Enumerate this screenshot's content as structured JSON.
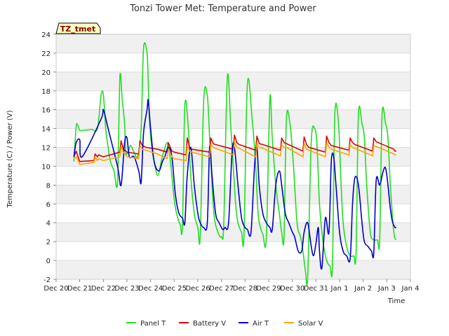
{
  "chart_data": {
    "type": "line",
    "title": "Tonzi Tower Met: Temperature and Power",
    "badge": "TZ_tmet",
    "xlabel": "Time",
    "ylabel": "Temperature (C) / Power (V)",
    "xlim": [
      0,
      15
    ],
    "ylim": [
      -2,
      24
    ],
    "x_ticks": [
      {
        "x": 0,
        "label": "Dec 20"
      },
      {
        "x": 1,
        "label": "Dec 21"
      },
      {
        "x": 2,
        "label": "Dec 22"
      },
      {
        "x": 3,
        "label": "Dec 23"
      },
      {
        "x": 4,
        "label": "Dec 24"
      },
      {
        "x": 5,
        "label": "Dec 25"
      },
      {
        "x": 6,
        "label": "Dec 26"
      },
      {
        "x": 7,
        "label": "Dec 27"
      },
      {
        "x": 8,
        "label": "Dec 28"
      },
      {
        "x": 9,
        "label": "Dec 29"
      },
      {
        "x": 10,
        "label": "Dec 30"
      },
      {
        "x": 11,
        "label": "Dec 31"
      },
      {
        "x": 12,
        "label": "Jan 1"
      },
      {
        "x": 13,
        "label": "Jan 2"
      },
      {
        "x": 14,
        "label": "Jan 3"
      },
      {
        "x": 15,
        "label": "Jan 4"
      }
    ],
    "y_ticks": [
      {
        "y": -2,
        "label": "-2"
      },
      {
        "y": 0,
        "label": "0"
      },
      {
        "y": 2,
        "label": "2"
      },
      {
        "y": 4,
        "label": "4"
      },
      {
        "y": 6,
        "label": "6"
      },
      {
        "y": 8,
        "label": "8"
      },
      {
        "y": 10,
        "label": "10"
      },
      {
        "y": 12,
        "label": "12"
      },
      {
        "y": 14,
        "label": "14"
      },
      {
        "y": 16,
        "label": "16"
      },
      {
        "y": 18,
        "label": "18"
      },
      {
        "y": 20,
        "label": "20"
      },
      {
        "y": 22,
        "label": "22"
      },
      {
        "y": 24,
        "label": "24"
      }
    ],
    "series": [
      {
        "name": "Panel T",
        "color": "#22dd22",
        "x": [
          0.75,
          0.85,
          0.92,
          1.0,
          1.1,
          1.5,
          1.75,
          1.9,
          2.0,
          2.1,
          2.2,
          2.3,
          2.45,
          2.6,
          2.7,
          2.8,
          2.9,
          2.95,
          3.05,
          3.15,
          3.3,
          3.45,
          3.6,
          3.7,
          3.85,
          3.9,
          3.95,
          4.05,
          4.15,
          4.3,
          4.45,
          4.55,
          4.7,
          4.8,
          4.9,
          5.0,
          5.1,
          5.25,
          5.35,
          5.45,
          5.6,
          5.7,
          5.85,
          6.0,
          6.1,
          6.25,
          6.4,
          6.5,
          6.6,
          6.7,
          6.85,
          7.0,
          7.1,
          7.25,
          7.4,
          7.5,
          7.6,
          7.7,
          7.85,
          7.95,
          8.1,
          8.3,
          8.45,
          8.55,
          8.65,
          8.75,
          8.9,
          9.05,
          9.15,
          9.3,
          9.45,
          9.55,
          9.65,
          9.75,
          9.9,
          10.05,
          10.2,
          10.35,
          10.45,
          10.55,
          10.65,
          10.8,
          10.95,
          11.05,
          11.15,
          11.3,
          11.45,
          11.6,
          11.7,
          11.8,
          11.95,
          12.05,
          12.15,
          12.3,
          12.45,
          12.6,
          12.7,
          12.8,
          12.95,
          13.05,
          13.15,
          13.3,
          13.45,
          13.6,
          13.7,
          13.8,
          13.95,
          14.05,
          14.15,
          14.3,
          14.4
        ],
        "values": [
          10.5,
          14.2,
          14.3,
          13.8,
          13.8,
          13.9,
          14.0,
          17.5,
          17.6,
          14.0,
          12.0,
          10.5,
          9.5,
          8.3,
          19.5,
          17.0,
          14.5,
          11.5,
          11.5,
          12.2,
          11.5,
          11.0,
          14.0,
          22.5,
          22.0,
          19.0,
          15.0,
          12.0,
          10.5,
          9.0,
          10.5,
          11.5,
          12.5,
          11.5,
          9.0,
          6.5,
          5.0,
          3.8,
          3.7,
          16.5,
          14.0,
          9.0,
          5.0,
          3.5,
          2.6,
          17.0,
          17.5,
          13.0,
          8.0,
          4.5,
          3.0,
          2.5,
          4.0,
          19.5,
          14.0,
          10.0,
          6.0,
          4.0,
          3.0,
          2.6,
          18.8,
          15.0,
          10.0,
          5.0,
          3.5,
          2.8,
          2.4,
          17.2,
          13.0,
          8.0,
          5.0,
          3.0,
          2.5,
          15.0,
          14.5,
          10.0,
          4.0,
          2.5,
          1.0,
          -1.0,
          -1.7,
          12.5,
          14.0,
          12.0,
          6.0,
          2.0,
          0.0,
          -0.6,
          -0.5,
          15.5,
          14.8,
          9.0,
          4.0,
          1.5,
          0.5,
          0.5,
          0.8,
          15.5,
          14.5,
          13.0,
          8.0,
          3.0,
          2.2,
          2.2,
          2.2,
          15.5,
          14.5,
          13.0,
          8.0,
          3.0,
          2.2
        ],
        "smooth": true
      },
      {
        "name": "Battery V",
        "color": "#dd0000",
        "x": [
          0.75,
          0.85,
          0.9,
          1.0,
          1.6,
          1.65,
          1.75,
          1.8,
          2.0,
          2.7,
          2.75,
          2.85,
          3.0,
          3.5,
          3.55,
          3.65,
          3.8,
          4.3,
          4.7,
          4.75,
          4.9,
          5.0,
          5.5,
          5.55,
          5.65,
          5.75,
          6.5,
          6.55,
          6.65,
          6.75,
          7.5,
          7.55,
          7.65,
          7.75,
          8.45,
          8.5,
          8.6,
          8.75,
          9.5,
          9.55,
          9.65,
          9.75,
          10.45,
          10.5,
          10.6,
          10.7,
          11.4,
          11.45,
          11.55,
          11.65,
          12.4,
          12.45,
          12.55,
          12.65,
          13.4,
          13.45,
          13.55,
          13.65,
          14.3,
          14.35,
          14.4
        ],
        "values": [
          11.0,
          11.6,
          11.2,
          10.5,
          10.6,
          11.3,
          11.0,
          11.2,
          11.0,
          11.5,
          12.7,
          11.8,
          11.5,
          11.3,
          12.7,
          12.2,
          12.0,
          11.8,
          11.5,
          12.5,
          11.6,
          11.5,
          11.2,
          13.0,
          12.0,
          11.8,
          11.5,
          13.0,
          12.4,
          12.3,
          11.8,
          13.3,
          12.5,
          12.3,
          11.7,
          13.2,
          12.4,
          12.3,
          11.7,
          13.0,
          12.5,
          12.4,
          11.6,
          13.1,
          12.3,
          12.0,
          11.5,
          13.2,
          12.5,
          12.2,
          11.7,
          13.0,
          12.5,
          12.3,
          11.6,
          13.0,
          12.6,
          12.5,
          11.8,
          11.6,
          11.6
        ],
        "smooth": false
      },
      {
        "name": "Air T",
        "color": "#0000cc",
        "x": [
          0.75,
          0.85,
          1.0,
          1.1,
          1.9,
          2.0,
          2.2,
          2.6,
          2.75,
          2.9,
          3.0,
          3.1,
          3.3,
          3.5,
          3.6,
          3.7,
          3.85,
          3.9,
          4.0,
          4.15,
          4.35,
          4.5,
          4.6,
          4.75,
          4.9,
          5.05,
          5.2,
          5.35,
          5.45,
          5.55,
          5.7,
          5.85,
          6.0,
          6.1,
          6.25,
          6.4,
          6.5,
          6.6,
          6.75,
          6.9,
          7.05,
          7.15,
          7.3,
          7.45,
          7.55,
          7.7,
          7.85,
          8.0,
          8.1,
          8.25,
          8.4,
          8.5,
          8.6,
          8.75,
          8.9,
          9.05,
          9.15,
          9.3,
          9.45,
          9.55,
          9.7,
          9.85,
          10.0,
          10.1,
          10.25,
          10.4,
          10.5,
          10.65,
          10.8,
          10.9,
          11.0,
          11.1,
          11.15,
          11.25,
          11.4,
          11.55,
          11.65,
          11.75,
          11.85,
          12.0,
          12.15,
          12.3,
          12.45,
          12.55,
          12.65,
          12.8,
          12.95,
          13.05,
          13.2,
          13.35,
          13.45,
          13.55,
          13.7,
          13.85,
          13.95,
          14.05,
          14.15,
          14.25,
          14.35,
          14.4
        ],
        "values": [
          11.0,
          12.5,
          12.8,
          11.0,
          15.0,
          16.0,
          14.0,
          10.0,
          8.0,
          12.5,
          13.0,
          11.0,
          11.0,
          9.5,
          8.3,
          13.5,
          16.0,
          17.0,
          14.0,
          10.5,
          9.5,
          10.5,
          11.0,
          12.0,
          11.0,
          7.0,
          5.0,
          4.5,
          4.0,
          9.0,
          12.0,
          8.0,
          5.0,
          4.0,
          3.5,
          4.0,
          12.0,
          9.0,
          5.0,
          4.0,
          3.3,
          3.5,
          4.0,
          11.5,
          12.0,
          8.0,
          4.5,
          3.5,
          3.3,
          3.0,
          10.0,
          12.0,
          8.0,
          5.0,
          4.0,
          3.5,
          3.3,
          8.0,
          9.5,
          8.0,
          5.0,
          4.0,
          3.0,
          2.5,
          1.0,
          1.0,
          3.0,
          4.0,
          1.5,
          0.5,
          1.8,
          3.5,
          1.0,
          -0.8,
          4.5,
          3.0,
          10.5,
          11.0,
          8.0,
          3.0,
          1.0,
          0.5,
          0.2,
          6.0,
          8.8,
          8.0,
          4.0,
          2.0,
          1.5,
          1.0,
          0.8,
          8.5,
          8.0,
          9.5,
          9.8,
          8.0,
          5.5,
          4.0,
          3.5,
          3.5
        ],
        "smooth": true
      },
      {
        "name": "Solar V",
        "color": "#ffa500",
        "x": [
          0.75,
          0.85,
          1.0,
          1.6,
          1.65,
          1.75,
          1.8,
          2.0,
          2.7,
          2.75,
          2.85,
          3.0,
          3.5,
          3.55,
          3.65,
          3.8,
          4.3,
          4.7,
          4.75,
          4.9,
          5.0,
          5.5,
          5.55,
          5.65,
          5.75,
          6.5,
          6.55,
          6.65,
          6.75,
          7.5,
          7.55,
          7.65,
          7.75,
          8.45,
          8.5,
          8.6,
          8.75,
          9.5,
          9.55,
          9.65,
          9.75,
          10.45,
          10.5,
          10.6,
          10.7,
          11.4,
          11.45,
          11.55,
          11.65,
          12.4,
          12.45,
          12.55,
          12.65,
          13.4,
          13.45,
          13.55,
          13.65,
          14.3,
          14.35,
          14.4
        ],
        "values": [
          10.8,
          11.0,
          10.2,
          10.4,
          11.0,
          10.6,
          10.8,
          10.6,
          11.0,
          12.1,
          11.5,
          11.0,
          10.8,
          12.2,
          11.8,
          11.7,
          11.3,
          10.8,
          11.8,
          11.0,
          10.8,
          10.6,
          12.2,
          11.6,
          11.5,
          11.0,
          12.3,
          12.0,
          11.9,
          11.2,
          12.5,
          12.0,
          11.9,
          11.0,
          12.4,
          12.0,
          11.9,
          11.1,
          12.3,
          12.0,
          12.0,
          11.0,
          12.4,
          11.8,
          11.7,
          11.0,
          12.5,
          12.0,
          11.8,
          11.2,
          12.3,
          12.0,
          11.9,
          11.1,
          12.2,
          12.1,
          12.0,
          11.3,
          11.2,
          11.2
        ],
        "smooth": false
      }
    ]
  }
}
